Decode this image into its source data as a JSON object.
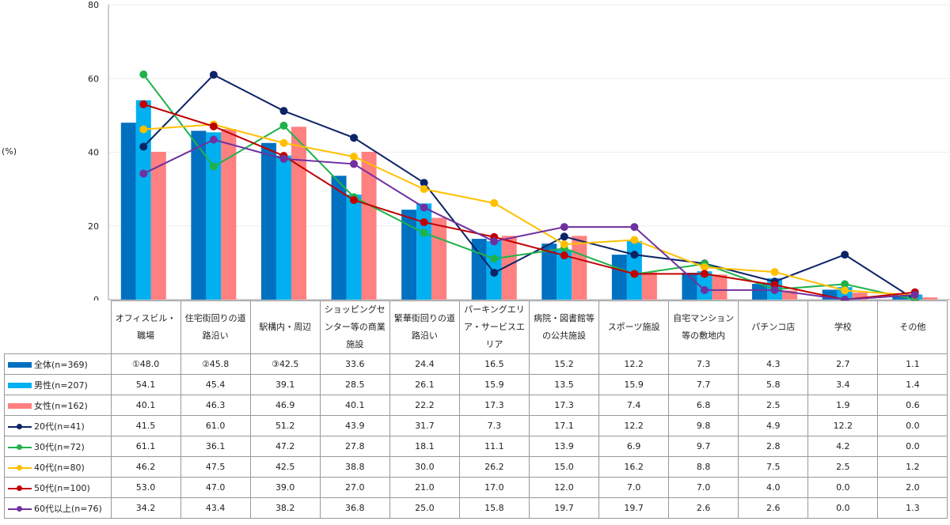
{
  "chart_data": {
    "type": "bar+line",
    "ylabel": "(%)",
    "ylim": [
      0,
      80
    ],
    "yticks": [
      "0",
      "20",
      "40",
      "60",
      "80"
    ],
    "grid": true,
    "legend": "table-left",
    "categories": [
      "オフィスビル・職場",
      "住宅街回りの道路沿い",
      "駅構内・周辺",
      "ショッピングセンター等の商業施設",
      "繁華街回りの道路沿い",
      "パーキングエリア・サービスエリア",
      "病院・図書館等の公共施設",
      "スポーツ施設",
      "自宅マンション等の敷地内",
      "パチンコ店",
      "学校",
      "その他"
    ],
    "series": [
      {
        "name": "全体(n=369)",
        "kind": "bar",
        "color": "#0070c0",
        "labels": [
          "①48.0",
          "②45.8",
          "③42.5",
          "33.6",
          "24.4",
          "16.5",
          "15.2",
          "12.2",
          "7.3",
          "4.3",
          "2.7",
          "1.1"
        ],
        "values": [
          48.0,
          45.8,
          42.5,
          33.6,
          24.4,
          16.5,
          15.2,
          12.2,
          7.3,
          4.3,
          2.7,
          1.1
        ]
      },
      {
        "name": "男性(n=207)",
        "kind": "bar",
        "color": "#00b0f0",
        "labels": [
          "54.1",
          "45.4",
          "39.1",
          "28.5",
          "26.1",
          "15.9",
          "13.5",
          "15.9",
          "7.7",
          "5.8",
          "3.4",
          "1.4"
        ],
        "values": [
          54.1,
          45.4,
          39.1,
          28.5,
          26.1,
          15.9,
          13.5,
          15.9,
          7.7,
          5.8,
          3.4,
          1.4
        ]
      },
      {
        "name": "女性(n=162)",
        "kind": "bar",
        "color": "#ff8080",
        "labels": [
          "40.1",
          "46.3",
          "46.9",
          "40.1",
          "22.2",
          "17.3",
          "17.3",
          "7.4",
          "6.8",
          "2.5",
          "1.9",
          "0.6"
        ],
        "values": [
          40.1,
          46.3,
          46.9,
          40.1,
          22.2,
          17.3,
          17.3,
          7.4,
          6.8,
          2.5,
          1.9,
          0.6
        ]
      },
      {
        "name": "20代(n=41)",
        "kind": "line",
        "color": "#0c2366",
        "labels": [
          "41.5",
          "61.0",
          "51.2",
          "43.9",
          "31.7",
          "7.3",
          "17.1",
          "12.2",
          "9.8",
          "4.9",
          "12.2",
          "0.0"
        ],
        "values": [
          41.5,
          61.0,
          51.2,
          43.9,
          31.7,
          7.3,
          17.1,
          12.2,
          9.8,
          4.9,
          12.2,
          0.0
        ]
      },
      {
        "name": "30代(n=72)",
        "kind": "line",
        "color": "#1fb24a",
        "labels": [
          "61.1",
          "36.1",
          "47.2",
          "27.8",
          "18.1",
          "11.1",
          "13.9",
          "6.9",
          "9.7",
          "2.8",
          "4.2",
          "0.0"
        ],
        "values": [
          61.1,
          36.1,
          47.2,
          27.8,
          18.1,
          11.1,
          13.9,
          6.9,
          9.7,
          2.8,
          4.2,
          0.0
        ]
      },
      {
        "name": "40代(n=80)",
        "kind": "line",
        "color": "#ffc000",
        "labels": [
          "46.2",
          "47.5",
          "42.5",
          "38.8",
          "30.0",
          "26.2",
          "15.0",
          "16.2",
          "8.8",
          "7.5",
          "2.5",
          "1.2"
        ],
        "values": [
          46.2,
          47.5,
          42.5,
          38.8,
          30.0,
          26.2,
          15.0,
          16.2,
          8.8,
          7.5,
          2.5,
          1.2
        ]
      },
      {
        "name": "50代(n=100)",
        "kind": "line",
        "color": "#c00000",
        "labels": [
          "53.0",
          "47.0",
          "39.0",
          "27.0",
          "21.0",
          "17.0",
          "12.0",
          "7.0",
          "7.0",
          "4.0",
          "0.0",
          "2.0"
        ],
        "values": [
          53.0,
          47.0,
          39.0,
          27.0,
          21.0,
          17.0,
          12.0,
          7.0,
          7.0,
          4.0,
          0.0,
          2.0
        ]
      },
      {
        "name": "60代以上(n=76)",
        "kind": "line",
        "color": "#7030a0",
        "labels": [
          "34.2",
          "43.4",
          "38.2",
          "36.8",
          "25.0",
          "15.8",
          "19.7",
          "19.7",
          "2.6",
          "2.6",
          "0.0",
          "1.3"
        ],
        "values": [
          34.2,
          43.4,
          38.2,
          36.8,
          25.0,
          15.8,
          19.7,
          19.7,
          2.6,
          2.6,
          0.0,
          1.3
        ]
      }
    ]
  }
}
